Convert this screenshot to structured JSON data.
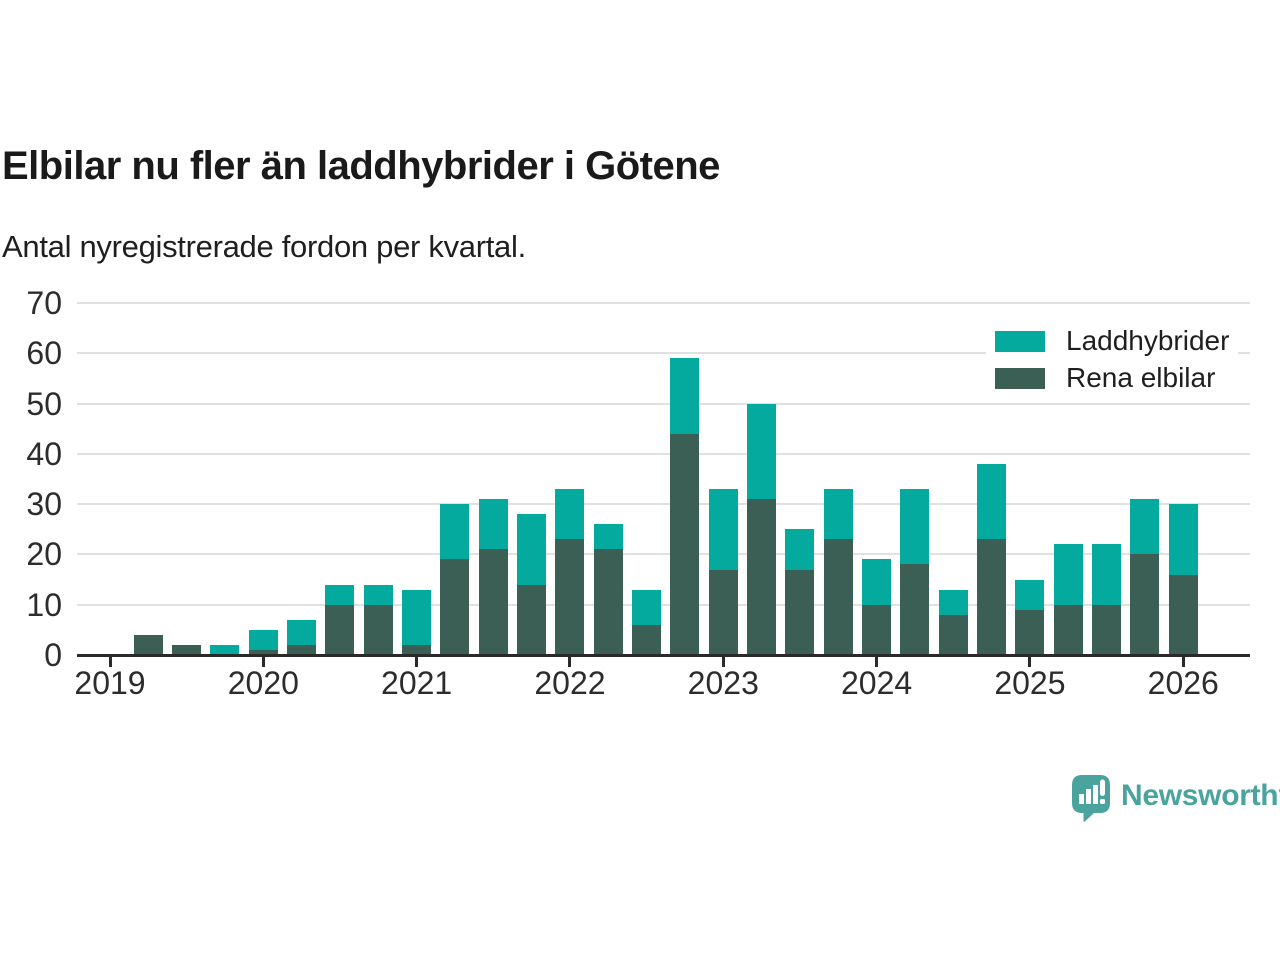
{
  "title": "Elbilar nu fler än laddhybrider i Götene",
  "subtitle": "Antal nyregistrerade fordon per kvartal.",
  "branding": {
    "text": "Newsworthy",
    "color": "#4aa49d"
  },
  "colors": {
    "laddhybrider": "#05aa9e",
    "rena_elbilar": "#3b5f55",
    "grid": "#e1e1e1",
    "axis": "#2a2a2a",
    "title_text": "#1a1a1a"
  },
  "chart_data": {
    "type": "bar",
    "stacked": true,
    "title": "Elbilar nu fler än laddhybrider i Götene",
    "subtitle": "Antal nyregistrerade fordon per kvartal.",
    "xlabel": "",
    "ylabel": "",
    "ylim": [
      0,
      70
    ],
    "y_ticks": [
      0,
      10,
      20,
      30,
      40,
      50,
      60,
      70
    ],
    "grid": "horizontal",
    "legend_position": "top-right",
    "categories": [
      "2019 Q1",
      "2019 Q2",
      "2019 Q3",
      "2019 Q4",
      "2020 Q1",
      "2020 Q2",
      "2020 Q3",
      "2020 Q4",
      "2021 Q1",
      "2021 Q2",
      "2021 Q3",
      "2021 Q4",
      "2022 Q1",
      "2022 Q2",
      "2022 Q3",
      "2022 Q4",
      "2023 Q1",
      "2023 Q2",
      "2023 Q3",
      "2023 Q4",
      "2024 Q1",
      "2024 Q2",
      "2024 Q3",
      "2024 Q4",
      "2025 Q1",
      "2025 Q2",
      "2025 Q3",
      "2025 Q4",
      "2026 Q1"
    ],
    "x_tick_labels": [
      "2019",
      "2020",
      "2021",
      "2022",
      "2023",
      "2024",
      "2025",
      "2026"
    ],
    "x_tick_indices": [
      0,
      4,
      8,
      12,
      16,
      20,
      24,
      28
    ],
    "series": [
      {
        "name": "Laddhybrider",
        "color": "#05aa9e",
        "stack_order": "top",
        "values": [
          0,
          0,
          0,
          2,
          4,
          5,
          4,
          4,
          11,
          11,
          10,
          14,
          10,
          5,
          7,
          15,
          16,
          19,
          8,
          10,
          9,
          15,
          5,
          15,
          6,
          12,
          12,
          11,
          14
        ]
      },
      {
        "name": "Rena elbilar",
        "color": "#3b5f55",
        "stack_order": "bottom",
        "values": [
          0,
          4,
          2,
          0,
          1,
          2,
          10,
          10,
          2,
          19,
          21,
          14,
          23,
          21,
          6,
          44,
          17,
          31,
          17,
          23,
          10,
          18,
          8,
          23,
          9,
          10,
          10,
          20,
          16
        ]
      }
    ],
    "totals": [
      0,
      4,
      2,
      2,
      5,
      7,
      14,
      14,
      13,
      30,
      31,
      28,
      33,
      26,
      13,
      59,
      33,
      50,
      25,
      33,
      19,
      33,
      13,
      38,
      15,
      22,
      22,
      31,
      30
    ]
  }
}
